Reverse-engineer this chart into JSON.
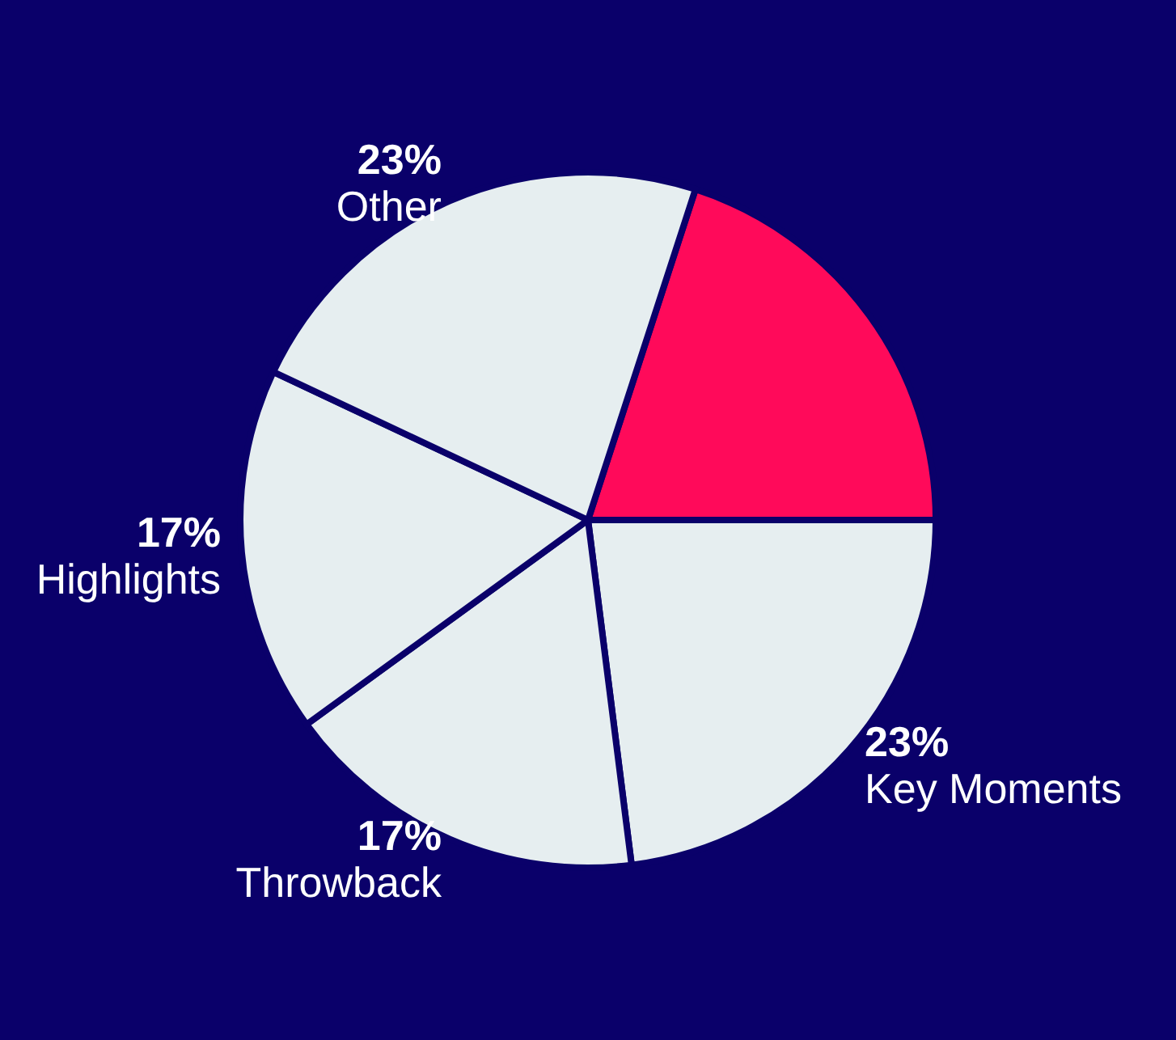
{
  "chart_data": {
    "type": "pie",
    "categories": [
      null,
      "Key Moments",
      "Throwback",
      "Highlights",
      "Other"
    ],
    "values": [
      20,
      23,
      17,
      17,
      23
    ],
    "colors": [
      "#ff0a5a",
      "#e6eef0",
      "#e6eef0",
      "#e6eef0",
      "#e6eef0"
    ],
    "value_labels": [
      null,
      "23%",
      "17%",
      "17%",
      "23%"
    ],
    "legend": false
  }
}
